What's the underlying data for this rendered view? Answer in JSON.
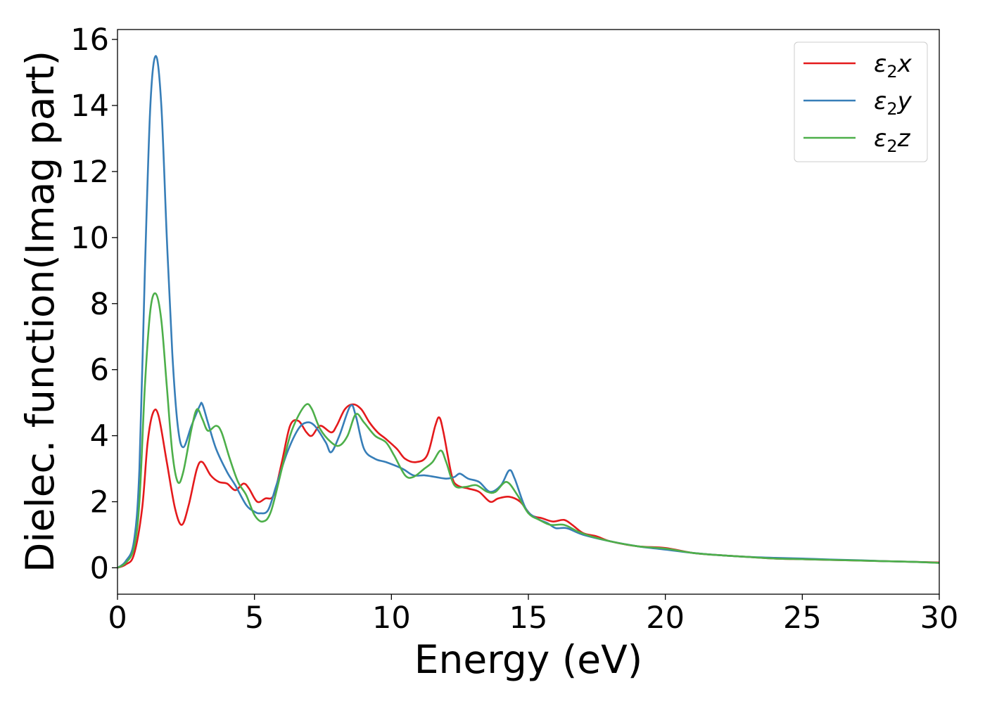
{
  "chart_data": {
    "type": "line",
    "title": "",
    "xlabel": "Energy (eV)",
    "ylabel": "Dielec. function(Imag part)",
    "xlim": [
      0,
      30
    ],
    "ylim": [
      -0.8,
      16.3
    ],
    "xticks": [
      0,
      5,
      10,
      15,
      20,
      25,
      30
    ],
    "yticks": [
      0,
      2,
      4,
      6,
      8,
      10,
      12,
      14,
      16
    ],
    "grid": false,
    "legend_position": "top-right",
    "colors": {
      "x": "#e41a1c",
      "y": "#377eb8",
      "z": "#4daf4a"
    },
    "series": [
      {
        "key": "x",
        "name": "ε2x",
        "name_base": "ε",
        "name_sub": "2",
        "name_suffix": "x",
        "color": "#e41a1c",
        "points": [
          [
            0,
            0
          ],
          [
            0.3,
            0.1
          ],
          [
            0.6,
            0.4
          ],
          [
            0.9,
            1.8
          ],
          [
            1.1,
            3.8
          ],
          [
            1.3,
            4.7
          ],
          [
            1.5,
            4.6
          ],
          [
            1.8,
            3.2
          ],
          [
            2.1,
            1.8
          ],
          [
            2.35,
            1.3
          ],
          [
            2.6,
            1.9
          ],
          [
            2.9,
            3.0
          ],
          [
            3.1,
            3.2
          ],
          [
            3.4,
            2.8
          ],
          [
            3.7,
            2.6
          ],
          [
            4.0,
            2.55
          ],
          [
            4.3,
            2.35
          ],
          [
            4.6,
            2.55
          ],
          [
            4.8,
            2.4
          ],
          [
            5.1,
            2.0
          ],
          [
            5.4,
            2.1
          ],
          [
            5.7,
            2.2
          ],
          [
            6.0,
            3.2
          ],
          [
            6.3,
            4.3
          ],
          [
            6.6,
            4.45
          ],
          [
            6.9,
            4.1
          ],
          [
            7.1,
            4.0
          ],
          [
            7.4,
            4.3
          ],
          [
            7.8,
            4.1
          ],
          [
            8.0,
            4.3
          ],
          [
            8.3,
            4.8
          ],
          [
            8.6,
            4.95
          ],
          [
            8.9,
            4.8
          ],
          [
            9.2,
            4.4
          ],
          [
            9.5,
            4.1
          ],
          [
            9.8,
            3.9
          ],
          [
            10.2,
            3.6
          ],
          [
            10.5,
            3.3
          ],
          [
            10.9,
            3.2
          ],
          [
            11.3,
            3.4
          ],
          [
            11.6,
            4.3
          ],
          [
            11.75,
            4.55
          ],
          [
            11.9,
            4.1
          ],
          [
            12.2,
            2.8
          ],
          [
            12.4,
            2.5
          ],
          [
            12.8,
            2.4
          ],
          [
            13.2,
            2.3
          ],
          [
            13.6,
            2.0
          ],
          [
            13.9,
            2.1
          ],
          [
            14.3,
            2.15
          ],
          [
            14.7,
            2.0
          ],
          [
            15.1,
            1.6
          ],
          [
            15.5,
            1.5
          ],
          [
            15.9,
            1.4
          ],
          [
            16.3,
            1.45
          ],
          [
            16.6,
            1.3
          ],
          [
            17.0,
            1.05
          ],
          [
            17.5,
            0.95
          ],
          [
            18.0,
            0.8
          ],
          [
            19.0,
            0.65
          ],
          [
            20.0,
            0.6
          ],
          [
            21.0,
            0.45
          ],
          [
            22.0,
            0.38
          ],
          [
            23.0,
            0.33
          ],
          [
            24.0,
            0.28
          ],
          [
            25.0,
            0.26
          ],
          [
            26.0,
            0.24
          ],
          [
            27.0,
            0.22
          ],
          [
            28.0,
            0.2
          ],
          [
            29.0,
            0.18
          ],
          [
            30.0,
            0.16
          ]
        ]
      },
      {
        "key": "y",
        "name": "ε2y",
        "name_base": "ε",
        "name_sub": "2",
        "name_suffix": "y",
        "color": "#377eb8",
        "points": [
          [
            0,
            0
          ],
          [
            0.3,
            0.2
          ],
          [
            0.6,
            0.8
          ],
          [
            0.8,
            3.0
          ],
          [
            1.0,
            9.0
          ],
          [
            1.2,
            14.0
          ],
          [
            1.4,
            15.5
          ],
          [
            1.6,
            14.0
          ],
          [
            1.8,
            10.0
          ],
          [
            2.0,
            6.5
          ],
          [
            2.2,
            4.3
          ],
          [
            2.4,
            3.65
          ],
          [
            2.7,
            4.3
          ],
          [
            3.0,
            4.9
          ],
          [
            3.1,
            4.95
          ],
          [
            3.3,
            4.4
          ],
          [
            3.6,
            3.6
          ],
          [
            4.0,
            2.9
          ],
          [
            4.3,
            2.5
          ],
          [
            4.7,
            1.9
          ],
          [
            5.0,
            1.7
          ],
          [
            5.2,
            1.65
          ],
          [
            5.5,
            1.75
          ],
          [
            5.8,
            2.5
          ],
          [
            6.2,
            3.5
          ],
          [
            6.6,
            4.2
          ],
          [
            6.9,
            4.4
          ],
          [
            7.2,
            4.3
          ],
          [
            7.6,
            3.8
          ],
          [
            7.8,
            3.5
          ],
          [
            8.1,
            4.0
          ],
          [
            8.5,
            4.9
          ],
          [
            8.7,
            4.6
          ],
          [
            9.0,
            3.6
          ],
          [
            9.4,
            3.3
          ],
          [
            9.8,
            3.2
          ],
          [
            10.4,
            3.0
          ],
          [
            10.8,
            2.8
          ],
          [
            11.2,
            2.8
          ],
          [
            11.6,
            2.75
          ],
          [
            12.0,
            2.7
          ],
          [
            12.3,
            2.75
          ],
          [
            12.5,
            2.85
          ],
          [
            12.8,
            2.7
          ],
          [
            13.2,
            2.6
          ],
          [
            13.6,
            2.3
          ],
          [
            14.0,
            2.5
          ],
          [
            14.3,
            2.95
          ],
          [
            14.5,
            2.7
          ],
          [
            14.9,
            1.8
          ],
          [
            15.3,
            1.5
          ],
          [
            15.7,
            1.35
          ],
          [
            16.0,
            1.2
          ],
          [
            16.4,
            1.2
          ],
          [
            17.0,
            1.0
          ],
          [
            18.0,
            0.8
          ],
          [
            19.0,
            0.65
          ],
          [
            20.0,
            0.55
          ],
          [
            21.0,
            0.45
          ],
          [
            22.0,
            0.38
          ],
          [
            23.0,
            0.33
          ],
          [
            24.0,
            0.3
          ],
          [
            25.0,
            0.28
          ],
          [
            26.0,
            0.25
          ],
          [
            27.0,
            0.23
          ],
          [
            28.0,
            0.2
          ],
          [
            29.0,
            0.18
          ],
          [
            30.0,
            0.15
          ]
        ]
      },
      {
        "key": "z",
        "name": "ε2z",
        "name_base": "ε",
        "name_sub": "2",
        "name_suffix": "z",
        "color": "#4daf4a",
        "points": [
          [
            0,
            0
          ],
          [
            0.3,
            0.15
          ],
          [
            0.6,
            0.6
          ],
          [
            0.8,
            2.0
          ],
          [
            1.0,
            5.5
          ],
          [
            1.2,
            7.8
          ],
          [
            1.4,
            8.3
          ],
          [
            1.6,
            7.5
          ],
          [
            1.8,
            5.5
          ],
          [
            2.0,
            3.5
          ],
          [
            2.2,
            2.6
          ],
          [
            2.4,
            2.9
          ],
          [
            2.7,
            4.2
          ],
          [
            2.9,
            4.8
          ],
          [
            3.1,
            4.5
          ],
          [
            3.3,
            4.15
          ],
          [
            3.6,
            4.3
          ],
          [
            3.8,
            4.1
          ],
          [
            4.1,
            3.3
          ],
          [
            4.4,
            2.6
          ],
          [
            4.7,
            2.2
          ],
          [
            5.0,
            1.6
          ],
          [
            5.3,
            1.4
          ],
          [
            5.6,
            1.7
          ],
          [
            6.0,
            3.0
          ],
          [
            6.3,
            4.0
          ],
          [
            6.6,
            4.6
          ],
          [
            6.9,
            4.95
          ],
          [
            7.1,
            4.8
          ],
          [
            7.4,
            4.2
          ],
          [
            7.8,
            3.8
          ],
          [
            8.1,
            3.7
          ],
          [
            8.4,
            4.0
          ],
          [
            8.7,
            4.65
          ],
          [
            9.0,
            4.4
          ],
          [
            9.4,
            4.0
          ],
          [
            9.8,
            3.8
          ],
          [
            10.1,
            3.4
          ],
          [
            10.5,
            2.8
          ],
          [
            10.8,
            2.75
          ],
          [
            11.2,
            3.0
          ],
          [
            11.5,
            3.2
          ],
          [
            11.8,
            3.55
          ],
          [
            12.0,
            3.2
          ],
          [
            12.3,
            2.5
          ],
          [
            12.7,
            2.45
          ],
          [
            13.1,
            2.5
          ],
          [
            13.5,
            2.3
          ],
          [
            13.8,
            2.3
          ],
          [
            14.2,
            2.6
          ],
          [
            14.6,
            2.2
          ],
          [
            15.0,
            1.65
          ],
          [
            15.4,
            1.45
          ],
          [
            15.8,
            1.3
          ],
          [
            16.3,
            1.3
          ],
          [
            16.8,
            1.1
          ],
          [
            17.3,
            0.95
          ],
          [
            18.0,
            0.8
          ],
          [
            19.0,
            0.65
          ],
          [
            20.0,
            0.58
          ],
          [
            21.0,
            0.45
          ],
          [
            22.0,
            0.38
          ],
          [
            23.0,
            0.33
          ],
          [
            24.0,
            0.28
          ],
          [
            25.0,
            0.26
          ],
          [
            26.0,
            0.24
          ],
          [
            27.0,
            0.22
          ],
          [
            28.0,
            0.2
          ],
          [
            29.0,
            0.18
          ],
          [
            30.0,
            0.15
          ]
        ]
      }
    ]
  }
}
